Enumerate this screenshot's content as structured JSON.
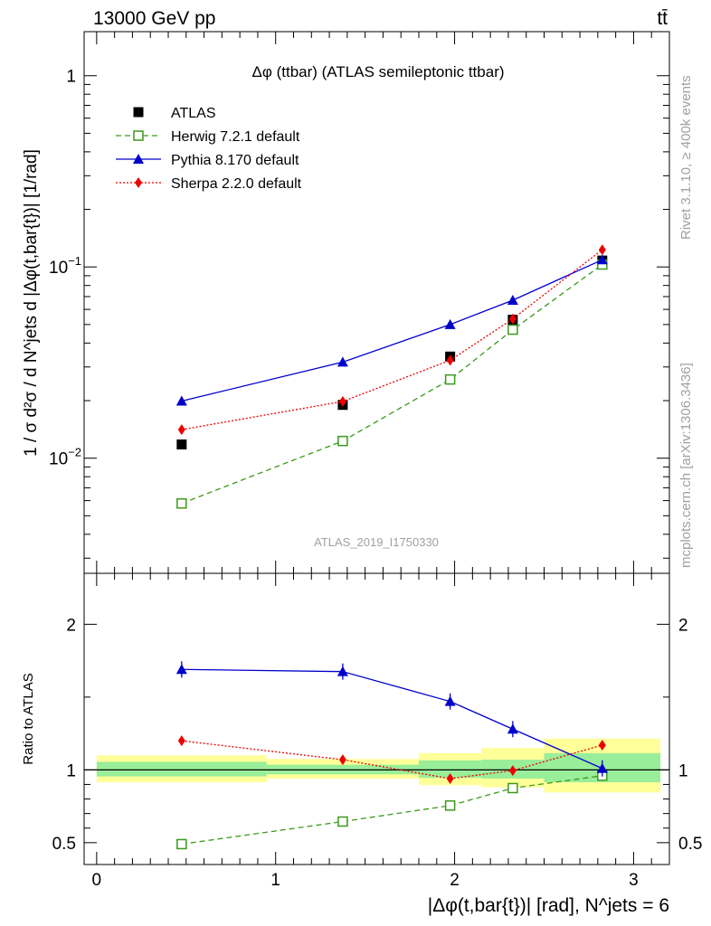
{
  "header": {
    "left": "13000 GeV pp",
    "right": "tt̄"
  },
  "side_text": {
    "rivet": "Rivet 3.1.10, ≥ 400k events",
    "mcplots": "mcplots.cern.ch [arXiv:1306.3436]"
  },
  "chart_data": [
    {
      "type": "scatter",
      "panel": "main",
      "title": "Δφ (ttbar) (ATLAS semileptonic ttbar)",
      "watermark": "ATLAS_2019_I1750330",
      "ylabel": "1 / σ d²σ / d N^jets d |Δφ(t,bar{t})| [1/rad]",
      "yscale": "log",
      "ylim": [
        0.0025,
        1.7
      ],
      "xlim": [
        -0.07,
        3.2
      ],
      "ytick_labels": [
        "10^-2",
        "10^-1",
        "1"
      ],
      "legend_position": "top-left",
      "x": [
        0.475,
        1.375,
        1.975,
        2.325,
        2.825
      ],
      "series": [
        {
          "name": "ATLAS",
          "color": "#000000",
          "marker": "square",
          "values": [
            0.0118,
            0.019,
            0.034,
            0.053,
            0.108
          ]
        },
        {
          "name": "Herwig 7.2.1 default",
          "color": "#3a9a1a",
          "marker": "open-square",
          "line": "dashed",
          "values": [
            0.0058,
            0.0123,
            0.0258,
            0.047,
            0.103
          ]
        },
        {
          "name": "Pythia 8.170 default",
          "color": "#0000cc",
          "marker": "triangle",
          "line": "solid",
          "values": [
            0.0199,
            0.0318,
            0.05,
            0.067,
            0.109
          ]
        },
        {
          "name": "Sherpa 2.2.0 default",
          "color": "#ee0000",
          "marker": "diamond",
          "line": "dotted",
          "values": [
            0.0141,
            0.0198,
            0.0325,
            0.0535,
            0.123
          ]
        }
      ]
    },
    {
      "type": "line",
      "panel": "ratio",
      "ylabel": "Ratio to ATLAS",
      "xlabel": "|Δφ(t,bar{t})| [rad], N^jets = 6",
      "xlim": [
        -0.07,
        3.2
      ],
      "ylim": [
        0.35,
        2.35
      ],
      "yticks": [
        0.5,
        1,
        2
      ],
      "ytick_labels": [
        "0.5",
        "1",
        "2"
      ],
      "xticks": [
        0,
        1,
        2,
        3
      ],
      "xtick_labels": [
        "0",
        "1",
        "2",
        "3"
      ],
      "x": [
        0.475,
        1.375,
        1.975,
        2.325,
        2.825
      ],
      "bands": [
        {
          "x_from": 0.0,
          "x_to": 0.95,
          "yellow": [
            0.915,
            1.1
          ],
          "green": [
            0.955,
            1.055
          ]
        },
        {
          "x_from": 0.95,
          "x_to": 1.8,
          "yellow": [
            0.94,
            1.075
          ],
          "green": [
            0.97,
            1.035
          ]
        },
        {
          "x_from": 1.8,
          "x_to": 2.15,
          "yellow": [
            0.895,
            1.115
          ],
          "green": [
            0.945,
            1.065
          ]
        },
        {
          "x_from": 2.15,
          "x_to": 2.5,
          "yellow": [
            0.88,
            1.15
          ],
          "green": [
            0.94,
            1.07
          ]
        },
        {
          "x_from": 2.5,
          "x_to": 3.15,
          "yellow": [
            0.845,
            1.215
          ],
          "green": [
            0.915,
            1.115
          ]
        }
      ],
      "series": [
        {
          "name": "Herwig 7.2.1 default",
          "color": "#3a9a1a",
          "marker": "open-square",
          "line": "dashed",
          "values": [
            0.49,
            0.645,
            0.755,
            0.875,
            0.96
          ]
        },
        {
          "name": "Pythia 8.170 default",
          "color": "#0000cc",
          "marker": "triangle",
          "line": "solid",
          "values": [
            1.69,
            1.675,
            1.47,
            1.28,
            1.01
          ]
        },
        {
          "name": "Sherpa 2.2.0 default",
          "color": "#ee0000",
          "marker": "diamond",
          "line": "dotted",
          "values": [
            1.2,
            1.07,
            0.94,
            0.995,
            1.17
          ]
        }
      ]
    }
  ]
}
